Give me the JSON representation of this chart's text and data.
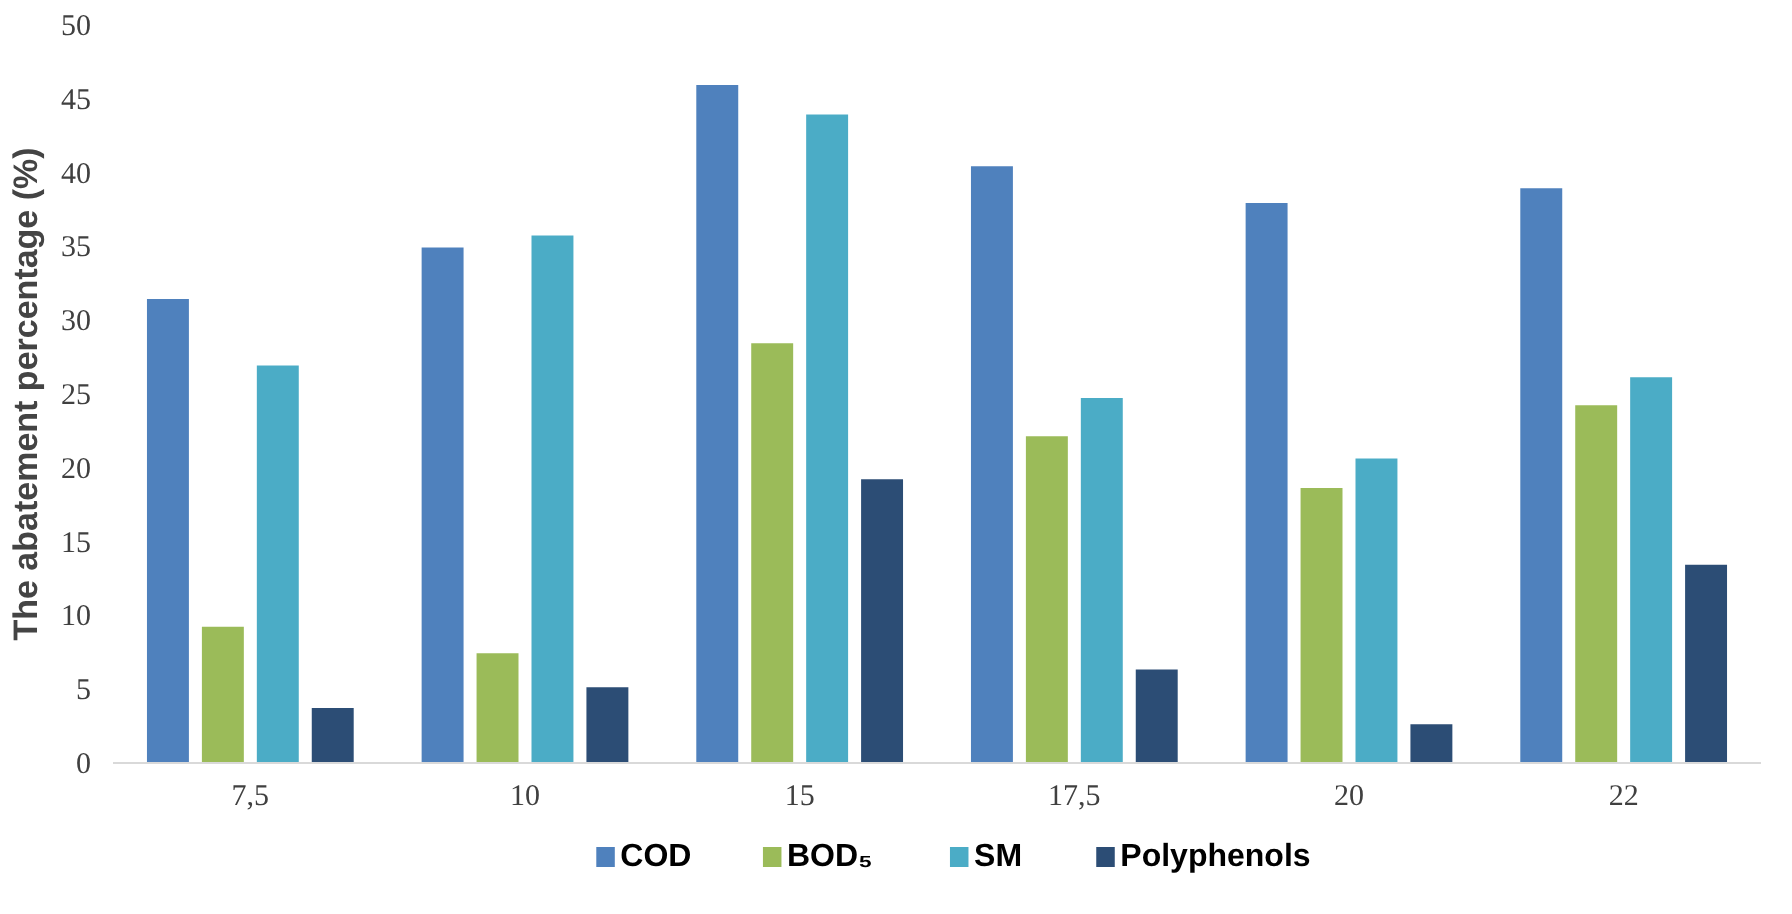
{
  "chart_data": {
    "type": "bar",
    "ylabel": "The abatement percentage (%)",
    "categories": [
      "7,5",
      "10",
      "15",
      "17,5",
      "20",
      "22"
    ],
    "series": [
      {
        "name": "COD",
        "color": "#4f81bd",
        "values": [
          31.5,
          35,
          46,
          40.5,
          38,
          39
        ]
      },
      {
        "name": "BOD₅",
        "color": "#9bbb59",
        "values": [
          9.3,
          7.5,
          28.5,
          22.2,
          18.7,
          24.3
        ]
      },
      {
        "name": "SM",
        "color": "#4bacc6",
        "values": [
          27,
          35.8,
          44,
          24.8,
          20.7,
          26.2
        ]
      },
      {
        "name": "Polyphenols",
        "color": "#2c4d75",
        "values": [
          3.8,
          5.2,
          19.3,
          6.4,
          2.7,
          13.5
        ]
      }
    ],
    "ylim": [
      0,
      50
    ],
    "yticks": [
      0,
      5,
      10,
      15,
      20,
      25,
      30,
      35,
      40,
      45,
      50
    ],
    "legend": "bottom"
  }
}
